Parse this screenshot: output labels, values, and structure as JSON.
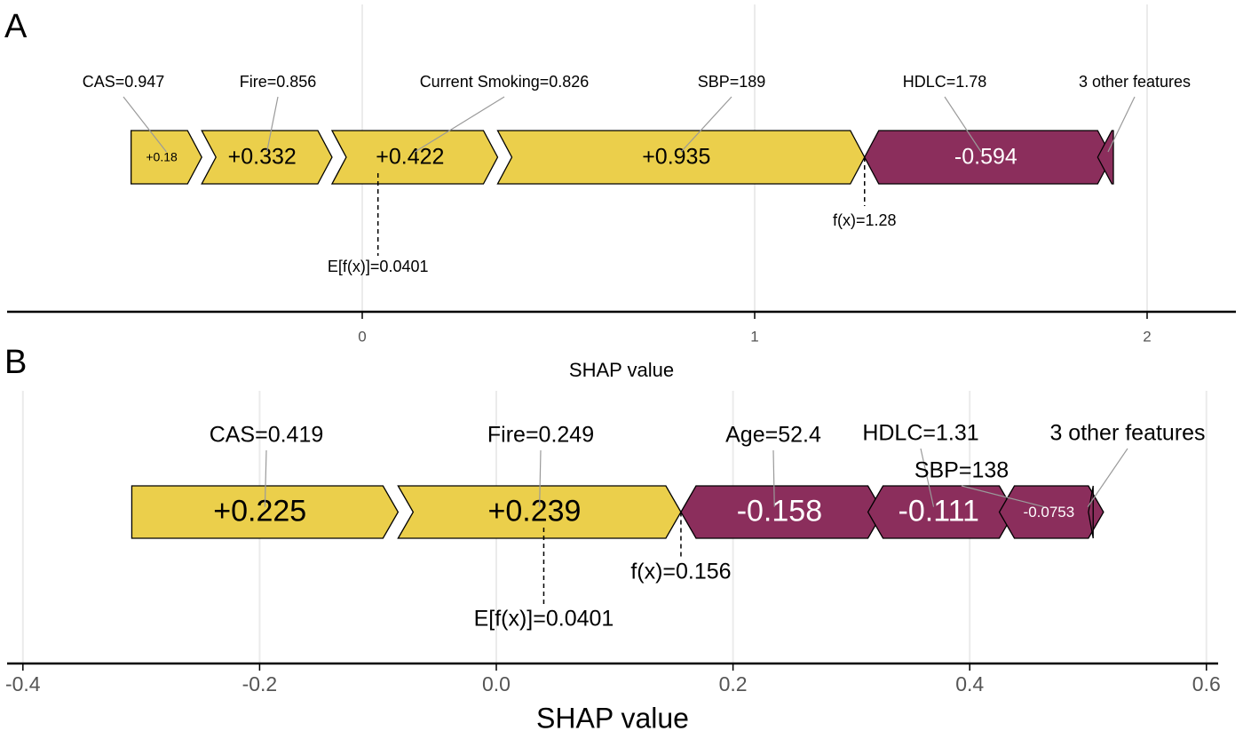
{
  "chart_data": [
    {
      "type": "force",
      "panel_label": "A",
      "xlabel": "SHAP value",
      "xlim": [
        -0.9,
        2.2
      ],
      "ticks": [
        0,
        1,
        2
      ],
      "tick_labels": [
        "0",
        "1",
        "2"
      ],
      "grid": true,
      "base_value": 0.0401,
      "base_label": "E[f(x)]=0.0401",
      "output_value": 1.28,
      "output_label": "f(x)=1.28",
      "positive_color": "#ebcf4b",
      "negative_color": "#8b2e5c",
      "features": [
        {
          "label": "CAS=0.947",
          "value": 0.18,
          "value_label": "+0.18"
        },
        {
          "label": "Fire=0.856",
          "value": 0.332,
          "value_label": "+0.332"
        },
        {
          "label": "Current Smoking=0.826",
          "value": 0.422,
          "value_label": "+0.422"
        },
        {
          "label": "SBP=189",
          "value": 0.935,
          "value_label": "+0.935"
        },
        {
          "label": "HDLC=1.78",
          "value": -0.594,
          "value_label": "-0.594"
        },
        {
          "label": "3 other features",
          "value": -0.04,
          "value_label": ""
        }
      ]
    },
    {
      "type": "force",
      "panel_label": "B",
      "xlabel": "SHAP value",
      "xlim": [
        -0.42,
        0.62
      ],
      "ticks": [
        -0.4,
        -0.2,
        0.0,
        0.2,
        0.4,
        0.6
      ],
      "tick_labels": [
        "-0.4",
        "-0.2",
        "0.0",
        "0.2",
        "0.4",
        "0.6"
      ],
      "grid": true,
      "base_value": 0.0401,
      "base_label": "E[f(x)]=0.0401",
      "output_value": 0.156,
      "output_label": "f(x)=0.156",
      "positive_color": "#ebcf4b",
      "negative_color": "#8b2e5c",
      "features": [
        {
          "label": "CAS=0.419",
          "value": 0.225,
          "value_label": "+0.225"
        },
        {
          "label": "Fire=0.249",
          "value": 0.239,
          "value_label": "+0.239"
        },
        {
          "label": "Age=52.4",
          "value": -0.158,
          "value_label": "-0.158"
        },
        {
          "label": "HDLC=1.31",
          "value": -0.111,
          "value_label": "-0.111"
        },
        {
          "label": "SBP=138",
          "value": -0.0753,
          "value_label": "-0.0753"
        },
        {
          "label": "3 other features",
          "value": -0.004,
          "value_label": ""
        }
      ]
    }
  ]
}
